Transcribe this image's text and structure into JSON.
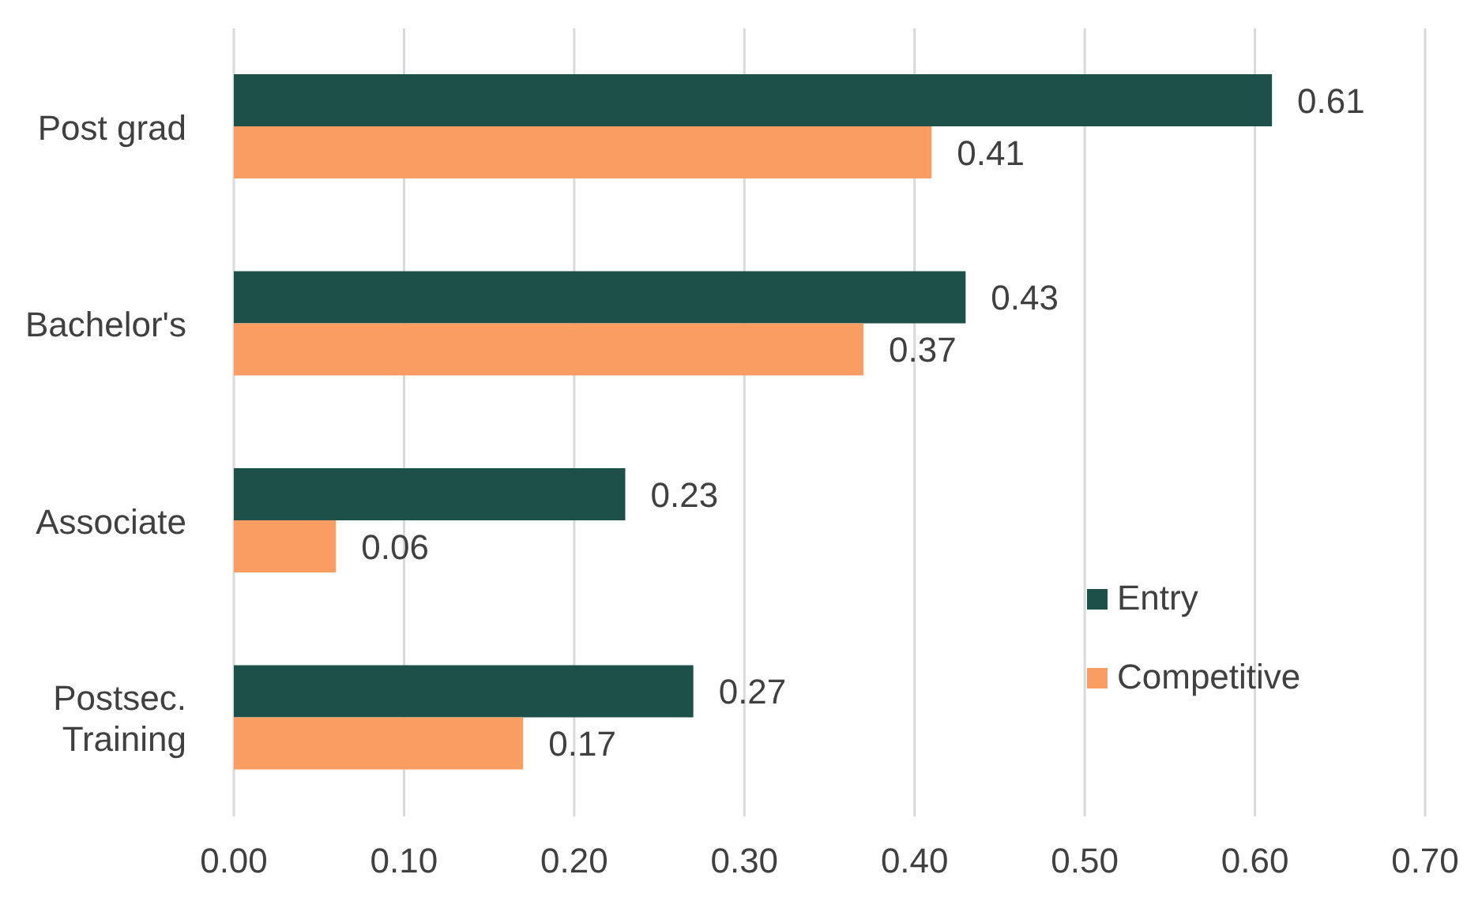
{
  "chart_data": {
    "type": "bar",
    "orientation": "horizontal",
    "categories": [
      "Post grad",
      "Bachelor's",
      "Associate",
      "Postsec. Training"
    ],
    "series": [
      {
        "name": "Entry",
        "color": "#1d5048",
        "values": [
          0.61,
          0.43,
          0.23,
          0.27
        ]
      },
      {
        "name": "Competitive",
        "color": "#f99d62",
        "values": [
          0.41,
          0.37,
          0.06,
          0.17
        ]
      }
    ],
    "xlim": [
      0,
      0.7
    ],
    "xticks": [
      {
        "value": 0,
        "label": "0.00"
      },
      {
        "value": 0.1,
        "label": "0.10"
      },
      {
        "value": 0.2,
        "label": "0.20"
      },
      {
        "value": 0.3,
        "label": "0.30"
      },
      {
        "value": 0.4,
        "label": "0.40"
      },
      {
        "value": 0.5,
        "label": "0.50"
      },
      {
        "value": 0.6,
        "label": "0.60"
      },
      {
        "value": 0.7,
        "label": "0.70"
      }
    ],
    "grid": "x",
    "legend": "right",
    "data_labels": true
  }
}
